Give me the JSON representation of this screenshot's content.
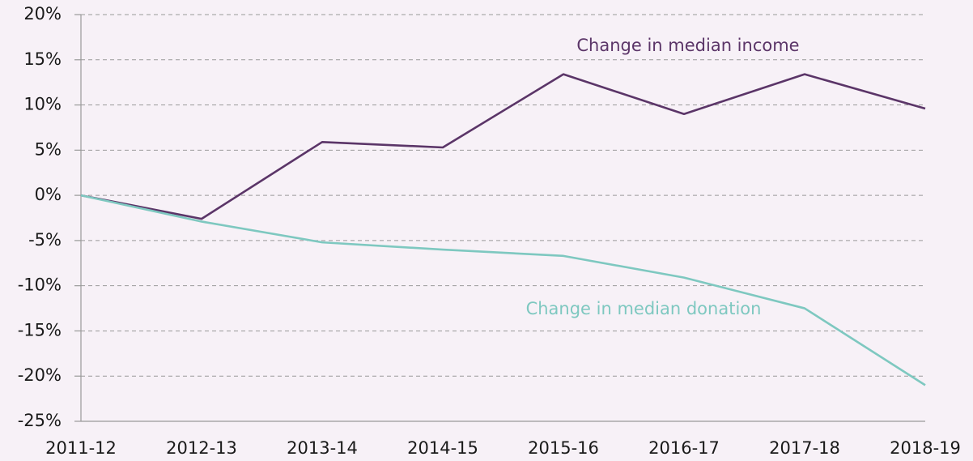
{
  "chart_data": {
    "type": "line",
    "categories": [
      "2011-12",
      "2012-13",
      "2013-14",
      "2014-15",
      "2015-16",
      "2016-17",
      "2017-18",
      "2018-19"
    ],
    "series": [
      {
        "name": "Change in median income",
        "color": "#5b3568",
        "values": [
          0,
          -2.6,
          5.9,
          5.3,
          13.4,
          9.0,
          13.4,
          9.6
        ]
      },
      {
        "name": "Change in median donation",
        "color": "#7ec8c0",
        "values": [
          0,
          -2.9,
          -5.2,
          -6.0,
          -6.7,
          -9.1,
          -12.5,
          -21.0
        ]
      }
    ],
    "ylim": [
      -25,
      20
    ],
    "yticks": [
      {
        "value": -25,
        "label": "-25%"
      },
      {
        "value": -20,
        "label": "-20%"
      },
      {
        "value": -15,
        "label": "-15%"
      },
      {
        "value": -10,
        "label": "-10%"
      },
      {
        "value": -5,
        "label": "-5%"
      },
      {
        "value": 0,
        "label": "0%"
      },
      {
        "value": 5,
        "label": "5%"
      },
      {
        "value": 10,
        "label": "10%"
      },
      {
        "value": 15,
        "label": "15%"
      },
      {
        "value": 20,
        "label": "20%"
      }
    ],
    "grid": true
  }
}
